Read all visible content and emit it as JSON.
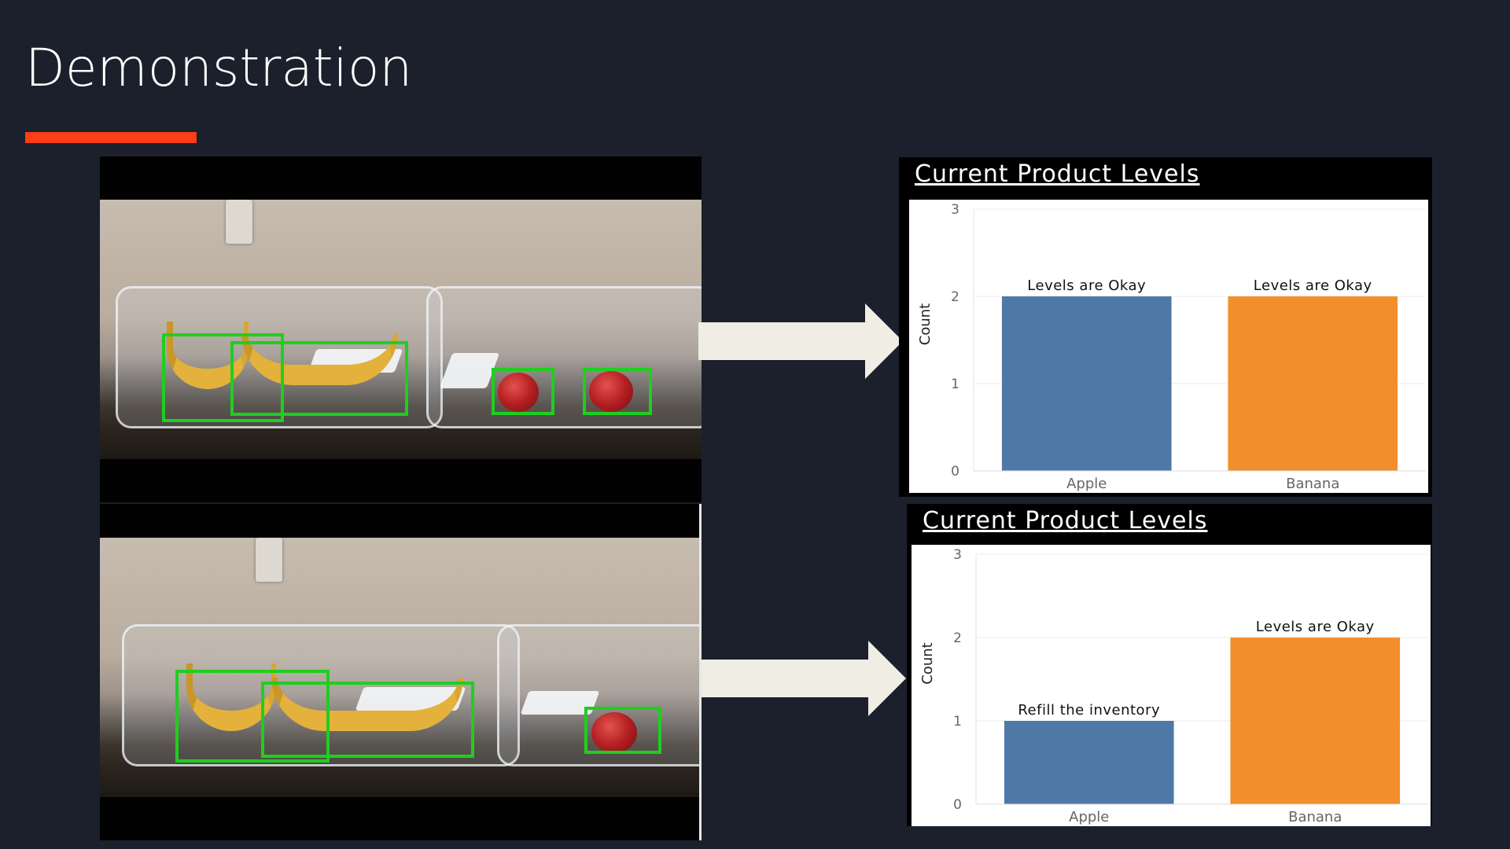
{
  "slide": {
    "title": "Demonstration",
    "accent_color": "#fc3d17"
  },
  "colors": {
    "apple_bar": "#4e79a7",
    "banana_bar": "#f28e2b",
    "detection_box": "#1fce1f",
    "arrow": "#efede4"
  },
  "icons": [
    "arrow-right-icon"
  ],
  "chart_data": [
    {
      "type": "bar",
      "title": "Current Product Levels",
      "ylabel": "Count",
      "ylim": [
        0,
        3
      ],
      "yticks": [
        "0",
        "1",
        "2",
        "3"
      ],
      "categories": [
        "Apple",
        "Banana"
      ],
      "values": [
        2,
        2
      ],
      "labels": [
        "Levels are Okay",
        "Levels are Okay"
      ],
      "grid": true
    },
    {
      "type": "bar",
      "title": "Current Product Levels",
      "ylabel": "Count",
      "ylim": [
        0,
        3
      ],
      "yticks": [
        "0",
        "1",
        "2",
        "3"
      ],
      "categories": [
        "Apple",
        "Banana"
      ],
      "values": [
        1,
        2
      ],
      "labels": [
        "Refill the inventory",
        "Levels are Okay"
      ],
      "grid": true
    }
  ]
}
